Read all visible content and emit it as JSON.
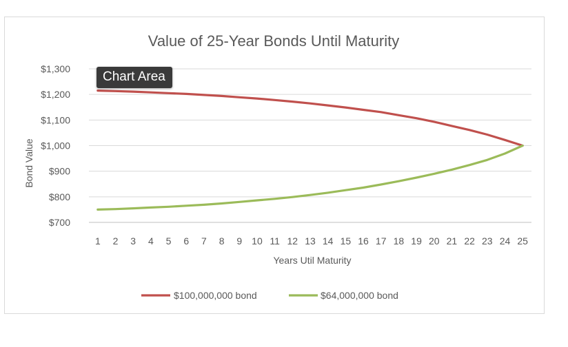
{
  "chart_data": {
    "type": "line",
    "title": "Value of 25-Year Bonds Until Maturity",
    "xlabel": "Years Util Maturity",
    "ylabel": "Bond Value",
    "categories": [
      "1",
      "2",
      "3",
      "4",
      "5",
      "6",
      "7",
      "8",
      "9",
      "10",
      "11",
      "12",
      "13",
      "14",
      "15",
      "16",
      "17",
      "18",
      "19",
      "20",
      "21",
      "22",
      "23",
      "24",
      "25"
    ],
    "ylim": [
      700,
      1300
    ],
    "yticks": [
      "$700",
      "$800",
      "$900",
      "$1,000",
      "$1,100",
      "$1,200",
      "$1,300"
    ],
    "grid": true,
    "legend_position": "bottom",
    "series": [
      {
        "name": "$100,000,000 bond",
        "color": "#c0504d",
        "values": [
          1215,
          1213,
          1211,
          1208,
          1205,
          1202,
          1198,
          1194,
          1189,
          1184,
          1178,
          1172,
          1165,
          1157,
          1149,
          1140,
          1131,
          1119,
          1107,
          1093,
          1077,
          1061,
          1043,
          1022,
          1000
        ]
      },
      {
        "name": "$64,000,000 bond",
        "color": "#9bbb59",
        "values": [
          750,
          752,
          755,
          758,
          761,
          765,
          769,
          774,
          780,
          786,
          792,
          799,
          807,
          816,
          826,
          836,
          848,
          861,
          875,
          890,
          906,
          924,
          944,
          969,
          1000
        ]
      }
    ]
  },
  "tooltip": {
    "label": "Chart Area"
  }
}
